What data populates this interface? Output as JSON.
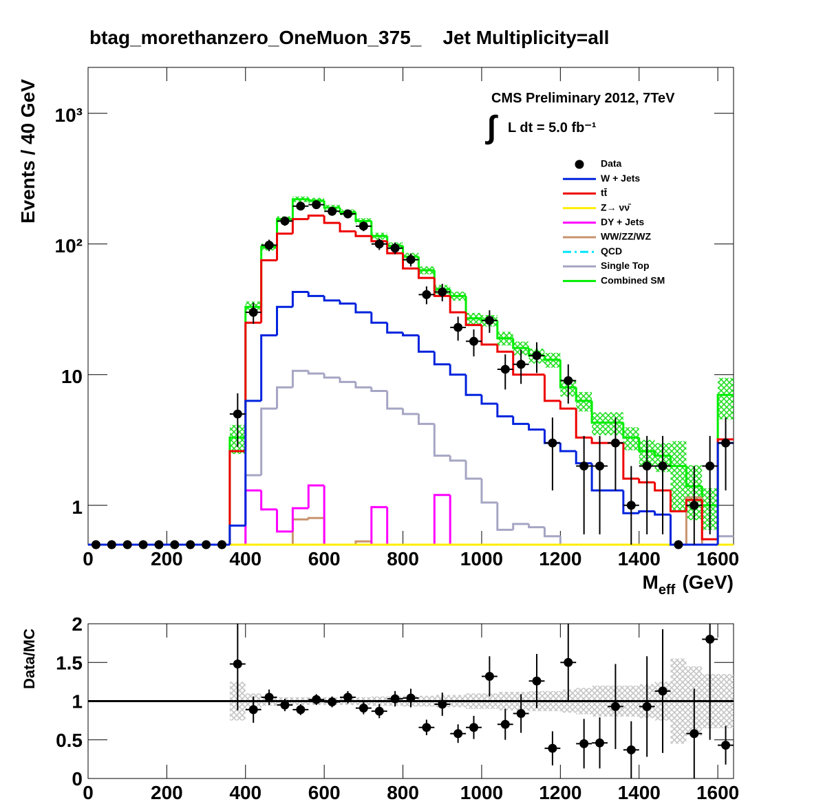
{
  "chart_data": [
    {
      "type": "histogram",
      "title": "btag_morethanzero_OneMuon_375_    Jet Multiplicity=all",
      "ylabel": "Events / 40 GeV",
      "xlabel": {
        "main": "M",
        "sub": "eff",
        "unit": "(GeV)"
      },
      "annotation": "CMS Preliminary 2012, 7TeV",
      "integral": "∫",
      "lumi": "L dt = 5.0 fb⁻¹",
      "log_y": true,
      "xlim": [
        0,
        1640
      ],
      "ylim": [
        0.5,
        2247
      ],
      "xticks": [
        0,
        200,
        400,
        600,
        800,
        1000,
        1200,
        1400,
        1600
      ],
      "yticks": [
        1,
        10,
        {
          "value": 100,
          "label": "10²"
        },
        {
          "value": 1000,
          "label": "10³"
        }
      ],
      "bins": [
        0,
        40,
        80,
        120,
        160,
        200,
        240,
        280,
        320,
        360,
        400,
        440,
        480,
        520,
        560,
        600,
        640,
        680,
        720,
        760,
        800,
        840,
        880,
        920,
        960,
        1000,
        1040,
        1080,
        1120,
        1160,
        1200,
        1240,
        1280,
        1320,
        1360,
        1400,
        1440,
        1480,
        1520,
        1560,
        1600,
        1640
      ],
      "data": {
        "name": "Data",
        "color": "#000000",
        "values": [
          0,
          0,
          0,
          0,
          0,
          0,
          0,
          0,
          0,
          5,
          30,
          98,
          150,
          195,
          200,
          178,
          170,
          137,
          100,
          93,
          76,
          41,
          43,
          23,
          18,
          26,
          11,
          12,
          14,
          3,
          9,
          2,
          2,
          3,
          1,
          2,
          2,
          0,
          1,
          2,
          3
        ],
        "errors": [
          0,
          0,
          0,
          0,
          0,
          0,
          0,
          0,
          0,
          2.2,
          5.5,
          9.9,
          12.2,
          14,
          14.1,
          13.3,
          13,
          11.7,
          10,
          9.6,
          8.7,
          6.4,
          6.6,
          4.8,
          4.2,
          5.1,
          3.3,
          3.5,
          3.7,
          1.7,
          3,
          1.4,
          1.4,
          1.7,
          1,
          1.4,
          1.4,
          0,
          1,
          1.4,
          1.7
        ]
      },
      "series": [
        {
          "name": "W + Jets",
          "color": "#0022dd",
          "style": "solid",
          "values": [
            0,
            0,
            0,
            0,
            0,
            0,
            0,
            0,
            0,
            0.7,
            6.3,
            20,
            33,
            43,
            40,
            37,
            35,
            30,
            25,
            21,
            20,
            15,
            12,
            10,
            7,
            6,
            4.8,
            4.2,
            3.8,
            3.0,
            2.6,
            2.1,
            1.3,
            1.3,
            0.87,
            0.9,
            0.85,
            0,
            0,
            0,
            3.0
          ]
        },
        {
          "name": "tt̄",
          "color": "#ee0000",
          "style": "solid",
          "values": [
            0,
            0,
            0,
            0,
            0,
            0,
            0,
            0,
            0,
            2.6,
            25,
            75,
            120,
            155,
            165,
            145,
            125,
            115,
            105,
            85,
            65,
            55,
            40,
            30,
            24,
            17,
            15,
            10,
            10,
            6.3,
            5.5,
            3.3,
            3.0,
            3.0,
            1.6,
            1.5,
            1.3,
            0.9,
            1.1,
            0.55,
            3.2
          ]
        },
        {
          "name": "Z→ νν̄",
          "color": "#ffee00",
          "style": "solid",
          "values": [
            0,
            0,
            0,
            0,
            0,
            0,
            0,
            0,
            0,
            0,
            0,
            0,
            0,
            0,
            0,
            0,
            0,
            0,
            0,
            0,
            0,
            0,
            0,
            0,
            0,
            0,
            0,
            0,
            0,
            0,
            0,
            0,
            0,
            0,
            0,
            0,
            0,
            0,
            0,
            0,
            0
          ]
        },
        {
          "name": "DY + Jets",
          "color": "#ff00ff",
          "style": "solid",
          "values": [
            0,
            0,
            0,
            0,
            0,
            0,
            0,
            0,
            0,
            0,
            1.3,
            0.93,
            0.63,
            0.95,
            1.42,
            0,
            0,
            0,
            0.97,
            0,
            0,
            0,
            1.2,
            0,
            0,
            0,
            0,
            0,
            0,
            0,
            0,
            0,
            0,
            0,
            0,
            0,
            0,
            0,
            0,
            0,
            0
          ]
        },
        {
          "name": "WW/ZZ/WZ",
          "color": "#c8936e",
          "style": "solid",
          "values": [
            0,
            0,
            0,
            0,
            0,
            0,
            0,
            0,
            0,
            0,
            0,
            0,
            0,
            0.78,
            0.8,
            0,
            0,
            0.53,
            0,
            0,
            0,
            0,
            0,
            0,
            0,
            0,
            0,
            0,
            0,
            0,
            0,
            0,
            0,
            0,
            0,
            0,
            0,
            0,
            1.15,
            0,
            0
          ]
        },
        {
          "name": "QCD",
          "color": "#00e5ff",
          "style": "dashdot",
          "values": [
            0,
            0,
            0,
            0,
            0,
            0,
            0,
            0,
            0,
            0,
            0,
            0,
            0,
            0,
            0,
            0,
            0,
            0,
            0,
            0,
            0,
            0,
            0,
            0,
            0,
            0,
            0,
            0,
            0,
            0,
            0,
            0,
            0,
            0,
            0,
            0,
            0,
            0,
            0,
            0,
            0
          ]
        },
        {
          "name": "Single Top",
          "color": "#a5a5c4",
          "style": "solid",
          "values": [
            0,
            0,
            0,
            0,
            0,
            0,
            0,
            0,
            0,
            0,
            1.7,
            5.5,
            8,
            10.7,
            10.2,
            9.5,
            8.8,
            8,
            7.5,
            5.5,
            5,
            4.2,
            2.4,
            2.2,
            1.6,
            1.05,
            0.65,
            0.72,
            0.68,
            0.58,
            0,
            0,
            0,
            0,
            0,
            0,
            0,
            0,
            0,
            0,
            0.58
          ]
        },
        {
          "name": "Combined SM",
          "color": "#00ee00",
          "style": "solid",
          "values": [
            0,
            0,
            0,
            0,
            0,
            0,
            0,
            0,
            0,
            3.3,
            33,
            95,
            155,
            220,
            215,
            190,
            175,
            150,
            115,
            97,
            80,
            63,
            45,
            40,
            27,
            26,
            19,
            16,
            14,
            13,
            8,
            6.3,
            4.3,
            4.3,
            3.3,
            2.6,
            2.4,
            2.0,
            1.4,
            1.0,
            7
          ],
          "rel_uncertainty": [
            null,
            null,
            null,
            null,
            null,
            null,
            null,
            null,
            null,
            0.25,
            0.1,
            0.06,
            0.05,
            0.05,
            0.05,
            0.05,
            0.05,
            0.05,
            0.06,
            0.06,
            0.07,
            0.07,
            0.08,
            0.08,
            0.1,
            0.1,
            0.12,
            0.12,
            0.13,
            0.13,
            0.15,
            0.17,
            0.2,
            0.2,
            0.2,
            0.22,
            0.25,
            0.55,
            0.45,
            0.35,
            0.35
          ]
        }
      ]
    },
    {
      "type": "ratio",
      "ylabel": "Data/MC",
      "xlim": [
        0,
        1640
      ],
      "ylim": [
        0,
        2
      ],
      "xticks": [
        0,
        200,
        400,
        600,
        800,
        1000,
        1200,
        1400,
        1600
      ],
      "yticks": [
        0,
        0.5,
        1,
        1.5,
        2
      ],
      "reference": 1,
      "values": [
        null,
        null,
        null,
        null,
        null,
        null,
        null,
        null,
        null,
        1.48,
        0.89,
        1.05,
        0.95,
        0.89,
        1.02,
        0.99,
        1.05,
        0.91,
        0.87,
        1.03,
        1.04,
        0.66,
        0.96,
        0.58,
        0.66,
        1.32,
        0.7,
        0.84,
        1.26,
        0.39,
        1.5,
        0.45,
        0.46,
        0.93,
        0.37,
        0.93,
        1.13,
        null,
        0.58,
        1.8,
        0.43
      ],
      "errors": [
        null,
        null,
        null,
        null,
        null,
        null,
        null,
        null,
        null,
        0.6,
        0.17,
        0.1,
        0.08,
        0.07,
        0.07,
        0.07,
        0.08,
        0.08,
        0.09,
        0.1,
        0.12,
        0.1,
        0.15,
        0.12,
        0.15,
        0.26,
        0.2,
        0.25,
        0.35,
        0.22,
        0.5,
        0.32,
        0.33,
        0.55,
        0.37,
        0.65,
        0.8,
        null,
        0.58,
        1.3,
        0.25
      ]
    }
  ]
}
